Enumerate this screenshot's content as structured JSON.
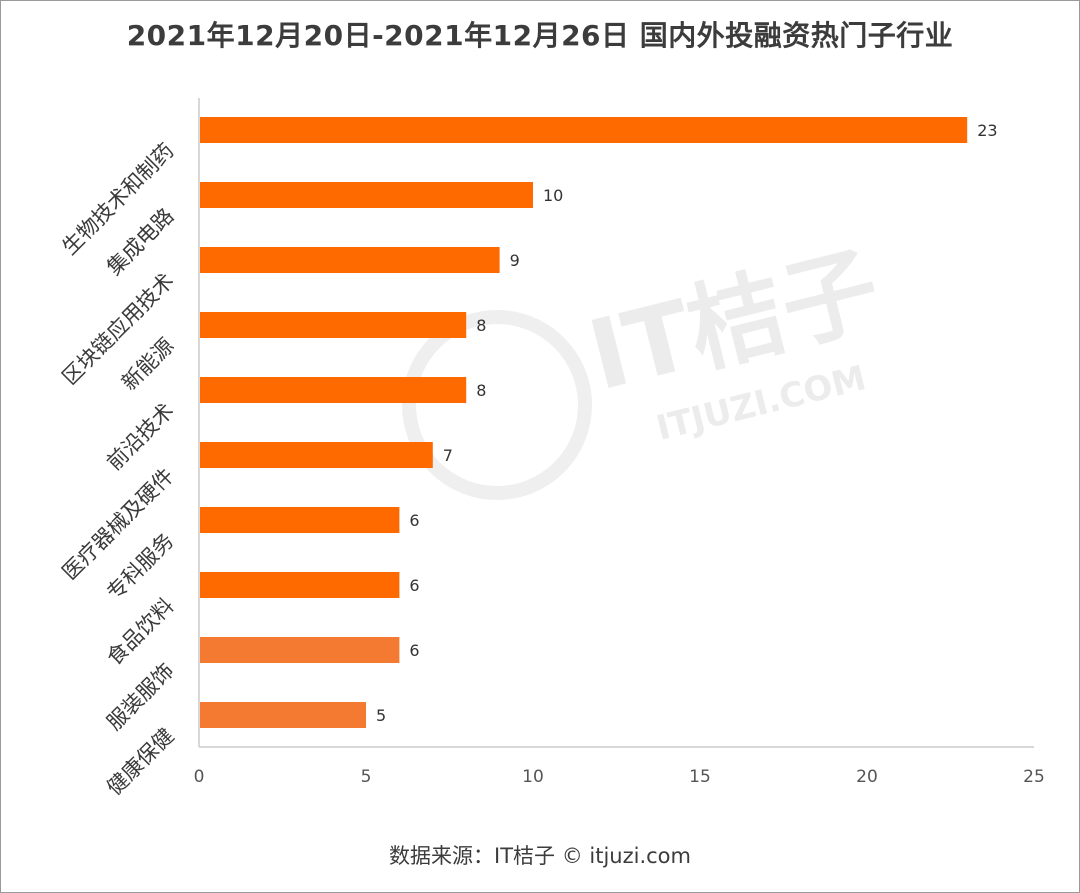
{
  "header": {
    "title": "2021年12月20日-2021年12月26日 国内外投融资热门子行业"
  },
  "footer": {
    "source": "数据来源：IT桔子 © itjuzi.com"
  },
  "watermark": {
    "brand": "IT桔子",
    "site": "ITJUZI.COM"
  },
  "colors": {
    "bar": "#ff6a00",
    "bar_light": "#f47a32",
    "axis": "#cccccc"
  },
  "chart_data": {
    "type": "bar",
    "orientation": "horizontal",
    "title": "2021年12月20日-2021年12月26日 国内外投融资热门子行业",
    "categories": [
      "生物技术和制药",
      "集成电路",
      "区块链应用技术",
      "新能源",
      "前沿技术",
      "医疗器械及硬件",
      "专科服务",
      "食品饮料",
      "服装服饰",
      "健康保健"
    ],
    "values": [
      23,
      10,
      9,
      8,
      8,
      7,
      6,
      6,
      6,
      5
    ],
    "xlim": [
      0,
      25
    ],
    "x_ticks": [
      0,
      5,
      10,
      15,
      20,
      25
    ],
    "grid": false,
    "legend": "none"
  }
}
